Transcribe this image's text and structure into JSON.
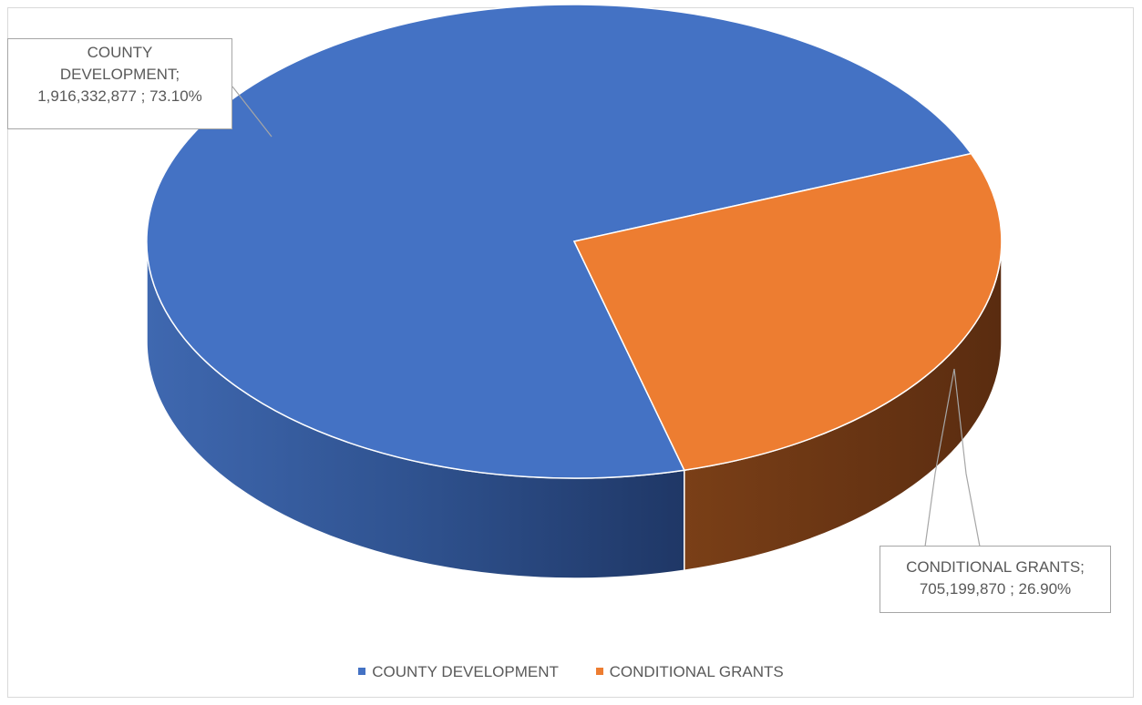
{
  "chart_data": {
    "type": "pie",
    "title": "",
    "categories": [
      "COUNTY DEVELOPMENT",
      "CONDITIONAL GRANTS"
    ],
    "values": [
      1916332877,
      705199870
    ],
    "percentages": [
      73.1,
      26.9
    ],
    "colors": [
      "#4472c4",
      "#ed7d31"
    ],
    "legend_position": "bottom",
    "labels": [
      {
        "lines": [
          "COUNTY",
          "DEVELOPMENT;",
          "1,916,332,877 ; 73.10%"
        ]
      },
      {
        "lines": [
          "CONDITIONAL GRANTS;",
          "705,199,870 ; 26.90%"
        ]
      }
    ],
    "legend": [
      {
        "label": "COUNTY DEVELOPMENT",
        "color": "#4472c4"
      },
      {
        "label": "CONDITIONAL GRANTS",
        "color": "#ed7d31"
      }
    ]
  }
}
